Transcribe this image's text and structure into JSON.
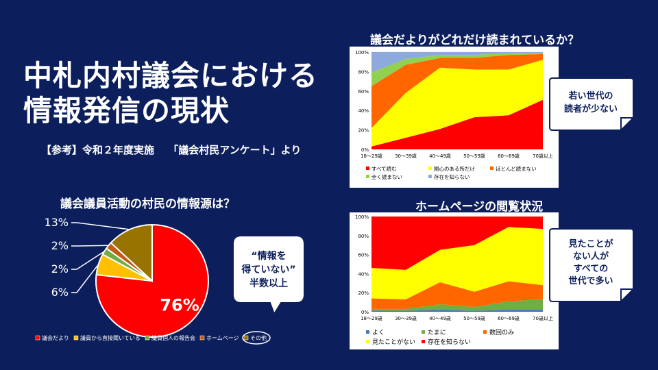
{
  "slide": {
    "title_line1": "中札内村議会における",
    "title_line2": "情報発信の現状",
    "subtitle": "【参考】令和２年度実施　 「議会村民アンケート」より",
    "callout_readers": [
      "若い世代の",
      "読者が少ない"
    ],
    "callout_homepage": [
      "見たことが",
      "ない人が",
      "すべての",
      "世代で多い"
    ],
    "callout_pie": [
      "“情報を",
      "得ていない”",
      "半数以上"
    ]
  },
  "chart_data": [
    {
      "type": "pie",
      "title": "議会議員活動の村民の情報源は？",
      "categories": [
        "議会だより",
        "議員から直接聞いている",
        "議員個人の報告会",
        "ホームページ",
        "その他"
      ],
      "values": [
        76,
        6,
        2,
        2,
        13
      ],
      "labels": [
        "76%",
        "6%",
        "2%",
        "2%",
        "13%"
      ],
      "colors": [
        "#ff0000",
        "#ffc000",
        "#70ad47",
        "#c55a11",
        "#997300"
      ],
      "legend": "bottom"
    },
    {
      "type": "area",
      "stacked": "percent",
      "title": "議会だよりがどれだけ読まれているか？",
      "categories": [
        "18～29歳",
        "30～39歳",
        "40～49歳",
        "50～59歳",
        "60～69歳",
        "70歳以上"
      ],
      "ylim": [
        0,
        100
      ],
      "yticks": [
        "0%",
        "20%",
        "40%",
        "60%",
        "80%",
        "100%"
      ],
      "series": [
        {
          "name": "すべて読む",
          "color": "#ff0000",
          "values": [
            3,
            12,
            21,
            33,
            35,
            51
          ]
        },
        {
          "name": "関心のある所だけ",
          "color": "#ffff00",
          "values": [
            19,
            46,
            63,
            49,
            47,
            41
          ]
        },
        {
          "name": "ほとんど読まない",
          "color": "#ff6600",
          "values": [
            43,
            29,
            10,
            12,
            15,
            6
          ]
        },
        {
          "name": "全く読まない",
          "color": "#92d050",
          "values": [
            14,
            6,
            3,
            3,
            2,
            1
          ]
        },
        {
          "name": "存在を知らない",
          "color": "#8ea9db",
          "values": [
            21,
            7,
            3,
            3,
            1,
            1
          ]
        }
      ],
      "legend": "bottom"
    },
    {
      "type": "area",
      "stacked": "percent",
      "title": "ホームページの閲覧状況",
      "categories": [
        "18～29歳",
        "30～39歳",
        "40～49歳",
        "50～59歳",
        "60～69歳",
        "70歳以上"
      ],
      "ylim": [
        0,
        100
      ],
      "yticks": [
        "0%",
        "20%",
        "40%",
        "60%",
        "80%",
        "100%"
      ],
      "series": [
        {
          "name": "よく",
          "color": "#4472c4",
          "values": [
            1,
            1,
            2,
            1,
            2,
            2
          ]
        },
        {
          "name": "たまに",
          "color": "#70ad47",
          "values": [
            2,
            2,
            6,
            4,
            9,
            11
          ]
        },
        {
          "name": "数回のみ",
          "color": "#ff6600",
          "values": [
            11,
            10,
            23,
            16,
            21,
            15
          ]
        },
        {
          "name": "見たことがない",
          "color": "#ffff00",
          "values": [
            32,
            31,
            34,
            49,
            57,
            59
          ]
        },
        {
          "name": "存在を知らない",
          "color": "#ff0000",
          "values": [
            54,
            56,
            35,
            30,
            11,
            13
          ]
        }
      ],
      "legend": "bottom"
    }
  ]
}
